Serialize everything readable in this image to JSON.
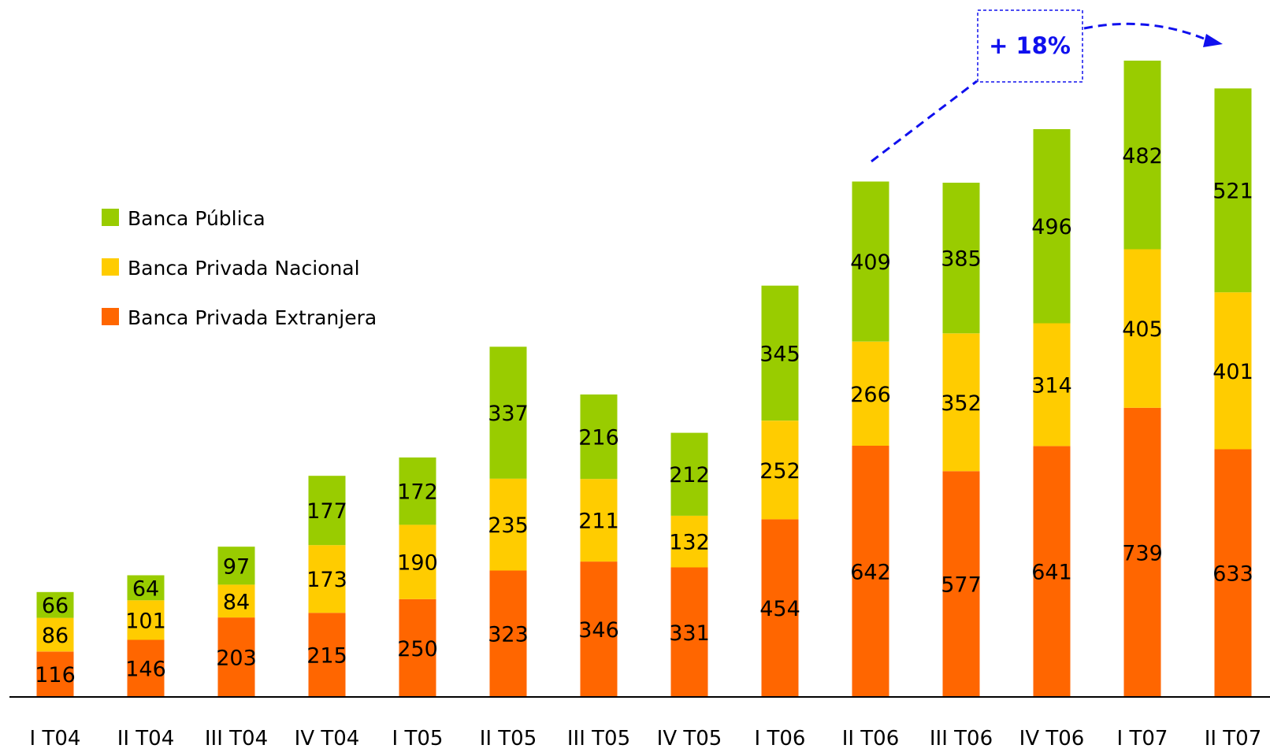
{
  "chart_data": {
    "type": "bar",
    "stacked": true,
    "categories": [
      "I T04",
      "II T04",
      "III T04",
      "IV T04",
      "I T05",
      "II T05",
      "III T05",
      "IV T05",
      "I T06",
      "II T06",
      "III T06",
      "IV T06",
      "I T07",
      "II T07"
    ],
    "series": [
      {
        "name": "Banca Privada Extranjera",
        "color": "#ff6600",
        "values": [
          116,
          146,
          203,
          215,
          250,
          323,
          346,
          331,
          454,
          642,
          577,
          641,
          739,
          633
        ]
      },
      {
        "name": "Banca Privada Nacional",
        "color": "#ffcc00",
        "values": [
          86,
          101,
          84,
          173,
          190,
          235,
          211,
          132,
          252,
          266,
          352,
          314,
          405,
          401
        ]
      },
      {
        "name": "Banca Pública",
        "color": "#99cc00",
        "values": [
          66,
          64,
          97,
          177,
          172,
          337,
          216,
          212,
          345,
          409,
          385,
          496,
          482,
          521
        ]
      }
    ],
    "title": "",
    "xlabel": "",
    "ylabel": "",
    "ylim": [
      0,
      1626
    ],
    "grid": false,
    "legend": {
      "position": "top-left",
      "order": [
        "Banca Pública",
        "Banca Privada Nacional",
        "Banca Privada Extranjera"
      ]
    },
    "annotation": {
      "text": "+ 18%",
      "from": "II T06",
      "to": "II T07",
      "color": "#1010ee"
    }
  }
}
